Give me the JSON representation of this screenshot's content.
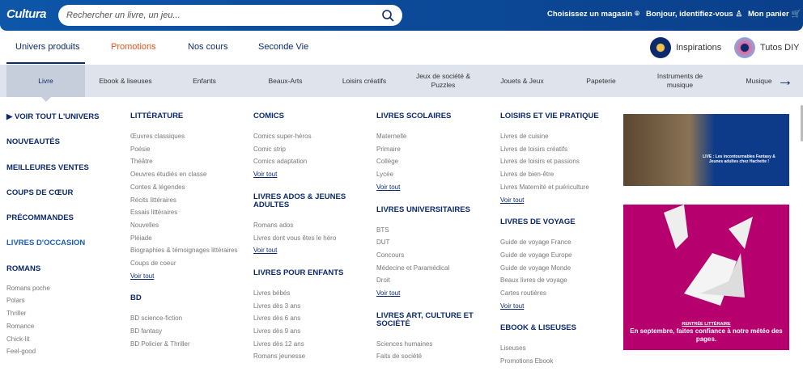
{
  "header": {
    "logo": "Cultura",
    "search_placeholder": "Rechercher un livre, un jeu...",
    "store": "Choisissez un magasin",
    "account": "Bonjour, identifiez-vous",
    "cart": "Mon panier"
  },
  "nav": {
    "tabs": [
      "Univers produits",
      "Promotions",
      "Nos cours",
      "Seconde Vie"
    ],
    "inspirations": "Inspirations",
    "tutos": "Tutos DIY"
  },
  "categories": [
    "Livre",
    "Ebook & liseuses",
    "Enfants",
    "Beaux-Arts",
    "Loisirs créatifs",
    "Jeux de société & Puzzles",
    "Jouets & Jeux",
    "Papeterie",
    "Instruments de musique",
    "Musique"
  ],
  "left": {
    "links": [
      "VOIR TOUT L'UNIVERS",
      "NOUVEAUTÉS",
      "MEILLEURES VENTES",
      "COUPS DE CŒUR",
      "PRÉCOMMANDES",
      "LIVRES D'OCCASION",
      "ROMANS"
    ],
    "romans": [
      "Romans poche",
      "Polars",
      "Thriller",
      "Romance",
      "Chick-lit",
      "Feel-good"
    ]
  },
  "voir_tout": "Voir tout",
  "col2": [
    {
      "title": "LITTÉRATURE",
      "items": [
        "Œuvres classiques",
        "Poésie",
        "Théâtre",
        "Oeuvres étudiés en classe",
        "Contes & légendes",
        "Récits littéraires",
        "Essais littéraires",
        "Nouvelles",
        "Pléiade",
        "Biographies & témoignages littéraires",
        "Coups de coeur"
      ]
    },
    {
      "title": "BD",
      "items": [
        "BD science-fiction",
        "BD fantasy",
        "BD Policier & Thriller"
      ]
    }
  ],
  "col3": [
    {
      "title": "COMICS",
      "items": [
        "Comics super-héros",
        "Comic strip",
        "Comics adaptation"
      ]
    },
    {
      "title": "LIVRES ADOS & JEUNES ADULTES",
      "items": [
        "Romans ados",
        "Livres dont vous êtes le héro"
      ]
    },
    {
      "title": "LIVRES POUR ENFANTS",
      "items": [
        "Livres bébés",
        "Livres dès 3 ans",
        "Livres dès 6 ans",
        "Livres dès 9 ans",
        "Livres dès 12 ans",
        "Romans jeunesse"
      ]
    }
  ],
  "col4": [
    {
      "title": "LIVRES SCOLAIRES",
      "items": [
        "Maternelle",
        "Primaire",
        "Collège",
        "Lycée"
      ]
    },
    {
      "title": "LIVRES UNIVERSITAIRES",
      "items": [
        "BTS",
        "DUT",
        "Concours",
        "Médecine et Paramédical",
        "Droit"
      ]
    },
    {
      "title": "LIVRES ART, CULTURE ET SOCIÉTÉ",
      "items": [
        "Sciences humaines",
        "Faits de société"
      ]
    }
  ],
  "col5": [
    {
      "title": "LOISIRS ET VIE PRATIQUE",
      "items": [
        "Livres de cuisine",
        "Livres de loisirs créatifs",
        "Livres de loisirs et passions",
        "Livres de bien-être",
        "Livres Maternité et puériculture"
      ]
    },
    {
      "title": "LIVRES DE VOYAGE",
      "items": [
        "Guide de voyage France",
        "Guide de voyage Europe",
        "Guide de voyage Monde",
        "Beaux livres de voyage",
        "Cartes routières"
      ]
    },
    {
      "title": "EBOOK & LISEUSES",
      "items": [
        "Liseuses",
        "Promotions Ebook"
      ]
    }
  ],
  "ads": {
    "ad1_text": "LIVE : Les incontournables Fantasy & Jeunes adultes chez Hachette !",
    "ad2_kicker": "RENTRÉE LITTÉRAIRE",
    "ad2_text": "En septembre, faites confiance à notre météo des pages."
  },
  "colors": {
    "brand": "#0a4a96",
    "heading": "#0b2a6e",
    "promo": "#e8541c",
    "ad": "#b5006d"
  }
}
